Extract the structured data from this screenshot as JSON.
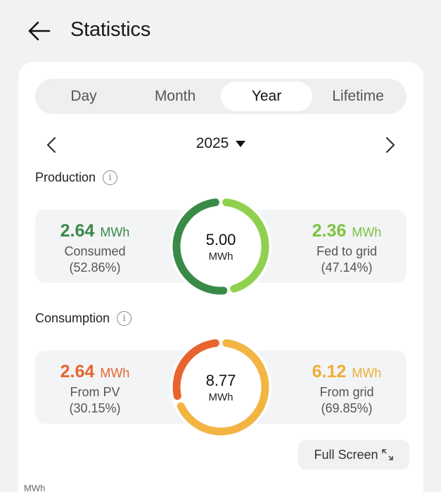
{
  "header": {
    "title": "Statistics"
  },
  "tabs": [
    {
      "label": "Day",
      "active": false
    },
    {
      "label": "Month",
      "active": false
    },
    {
      "label": "Year",
      "active": true
    },
    {
      "label": "Lifetime",
      "active": false
    }
  ],
  "date_selector": {
    "value": "2025"
  },
  "production": {
    "label": "Production",
    "total": {
      "value": "5.00",
      "unit": "MWh"
    },
    "consumed": {
      "value": "2.64",
      "unit": "MWh",
      "label": "Consumed",
      "percent": "(52.86%)",
      "fraction": 0.5286,
      "color": "#3a8a47"
    },
    "fed_to_grid": {
      "value": "2.36",
      "unit": "MWh",
      "label": "Fed to grid",
      "percent": "(47.14%)",
      "fraction": 0.4714,
      "color": "#8fd14f"
    }
  },
  "consumption": {
    "label": "Consumption",
    "total": {
      "value": "8.77",
      "unit": "MWh"
    },
    "from_pv": {
      "value": "2.64",
      "unit": "MWh",
      "label": "From PV",
      "percent": "(30.15%)",
      "fraction": 0.3015,
      "color": "#e8642e"
    },
    "from_grid": {
      "value": "6.12",
      "unit": "MWh",
      "label": "From grid",
      "percent": "(69.85%)",
      "fraction": 0.6985,
      "color": "#f2b544"
    }
  },
  "full_screen_label": "Full Screen",
  "chart_axis_unit": "MWh"
}
